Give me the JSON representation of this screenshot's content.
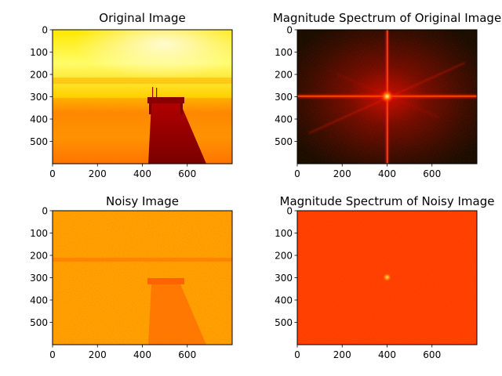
{
  "chart_data": [
    {
      "type": "heatmap",
      "title": "Original Image",
      "colormap": "hot",
      "image_width": 800,
      "image_height": 600,
      "xticks": [
        0,
        200,
        400,
        600
      ],
      "yticks": [
        0,
        100,
        200,
        300,
        400,
        500
      ],
      "xlim": [
        0,
        800
      ],
      "ylim": [
        600,
        0
      ]
    },
    {
      "type": "heatmap",
      "title": "Magnitude Spectrum of Original Image",
      "colormap": "hot",
      "image_width": 800,
      "image_height": 600,
      "xticks": [
        0,
        200,
        400,
        600
      ],
      "yticks": [
        0,
        100,
        200,
        300,
        400,
        500
      ],
      "xlim": [
        0,
        800
      ],
      "ylim": [
        600,
        0
      ]
    },
    {
      "type": "heatmap",
      "title": "Noisy Image",
      "colormap": "hot",
      "image_width": 800,
      "image_height": 600,
      "xticks": [
        0,
        200,
        400,
        600
      ],
      "yticks": [
        0,
        100,
        200,
        300,
        400,
        500
      ],
      "xlim": [
        0,
        800
      ],
      "ylim": [
        600,
        0
      ]
    },
    {
      "type": "heatmap",
      "title": "Magnitude Spectrum of Noisy Image",
      "colormap": "hot",
      "image_width": 800,
      "image_height": 600,
      "xticks": [
        0,
        200,
        400,
        600
      ],
      "yticks": [
        0,
        100,
        200,
        300,
        400,
        500
      ],
      "xlim": [
        0,
        800
      ],
      "ylim": [
        600,
        0
      ]
    }
  ]
}
